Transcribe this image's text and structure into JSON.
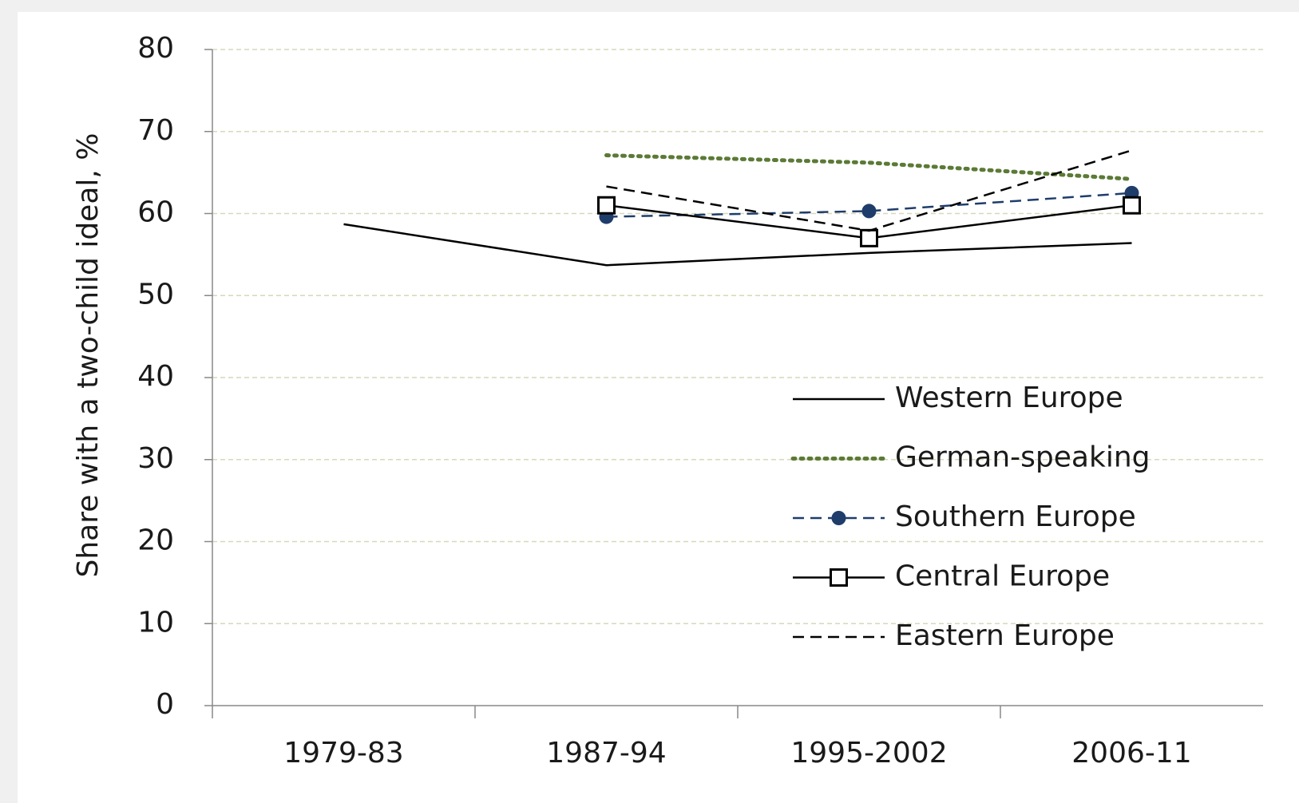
{
  "chart_data": {
    "type": "line",
    "y_label": "Share with a two-child ideal, %",
    "categories": [
      "1979-83",
      "1987-94",
      "1995-2002",
      "2006-11"
    ],
    "series": [
      {
        "name": "Western Europe",
        "color": "#000000",
        "dash": "solid",
        "marker": "none",
        "values": [
          58.7,
          53.7,
          55.2,
          56.4
        ]
      },
      {
        "name": "German-speaking",
        "color": "#5b7a36",
        "dash": "dotted",
        "marker": "none",
        "values": [
          null,
          67.1,
          66.2,
          64.2
        ]
      },
      {
        "name": "Southern Europe",
        "color": "#1f3d6b",
        "dash": "dashed",
        "marker": "circle",
        "values": [
          null,
          59.6,
          60.3,
          62.5
        ]
      },
      {
        "name": "Central Europe",
        "color": "#000000",
        "dash": "solid",
        "marker": "square",
        "values": [
          null,
          61.0,
          57.0,
          61.0
        ]
      },
      {
        "name": "Eastern Europe",
        "color": "#000000",
        "dash": "dashed",
        "marker": "none",
        "values": [
          null,
          63.3,
          57.9,
          67.7
        ]
      }
    ],
    "ylim": [
      0,
      80
    ],
    "yticks": [
      0,
      10,
      20,
      30,
      40,
      50,
      60,
      70,
      80
    ],
    "grid": true,
    "legend": "lower right"
  }
}
